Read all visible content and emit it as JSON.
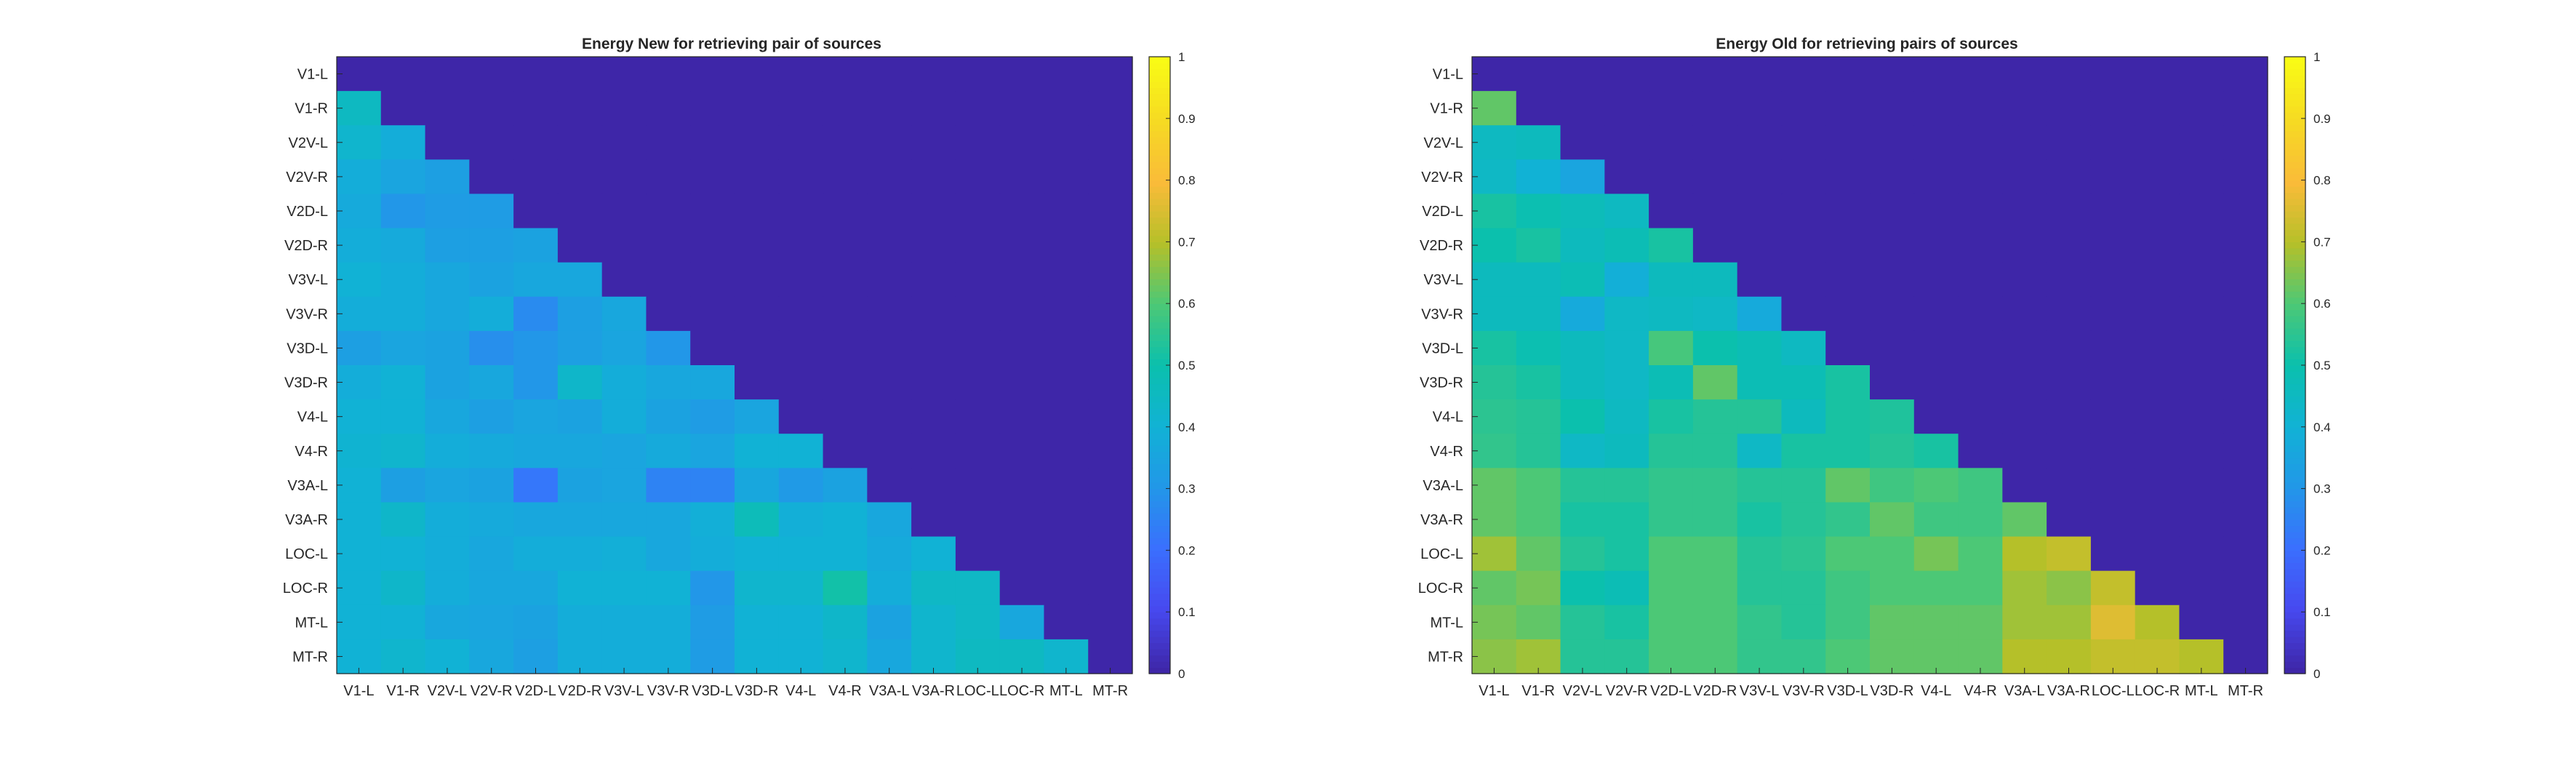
{
  "chart_data": [
    {
      "type": "heatmap",
      "title": "Energy New for retrieving pair of sources",
      "labels": [
        "V1-L",
        "V1-R",
        "V2V-L",
        "V2V-R",
        "V2D-L",
        "V2D-R",
        "V3V-L",
        "V3V-R",
        "V3D-L",
        "V3D-R",
        "V4-L",
        "V4-R",
        "V3A-L",
        "V3A-R",
        "LOC-L",
        "LOC-R",
        "MT-L",
        "MT-R"
      ],
      "colorbar": {
        "min": 0,
        "max": 1,
        "ticks": [
          "0",
          "0.1",
          "0.2",
          "0.3",
          "0.4",
          "0.5",
          "0.6",
          "0.7",
          "0.8",
          "0.9",
          "1"
        ]
      },
      "lower_triangle_only": true,
      "values": [
        [
          0,
          0,
          0,
          0,
          0,
          0,
          0,
          0,
          0,
          0,
          0,
          0,
          0,
          0,
          0,
          0,
          0,
          0
        ],
        [
          0.45,
          0,
          0,
          0,
          0,
          0,
          0,
          0,
          0,
          0,
          0,
          0,
          0,
          0,
          0,
          0,
          0,
          0
        ],
        [
          0.42,
          0.38,
          0,
          0,
          0,
          0,
          0,
          0,
          0,
          0,
          0,
          0,
          0,
          0,
          0,
          0,
          0,
          0
        ],
        [
          0.38,
          0.35,
          0.33,
          0,
          0,
          0,
          0,
          0,
          0,
          0,
          0,
          0,
          0,
          0,
          0,
          0,
          0,
          0
        ],
        [
          0.37,
          0.3,
          0.32,
          0.32,
          0,
          0,
          0,
          0,
          0,
          0,
          0,
          0,
          0,
          0,
          0,
          0,
          0,
          0
        ],
        [
          0.38,
          0.37,
          0.33,
          0.33,
          0.34,
          0,
          0,
          0,
          0,
          0,
          0,
          0,
          0,
          0,
          0,
          0,
          0,
          0
        ],
        [
          0.4,
          0.38,
          0.36,
          0.34,
          0.36,
          0.36,
          0,
          0,
          0,
          0,
          0,
          0,
          0,
          0,
          0,
          0,
          0,
          0
        ],
        [
          0.38,
          0.38,
          0.36,
          0.38,
          0.27,
          0.33,
          0.36,
          0,
          0,
          0,
          0,
          0,
          0,
          0,
          0,
          0,
          0,
          0
        ],
        [
          0.33,
          0.35,
          0.34,
          0.28,
          0.3,
          0.33,
          0.35,
          0.3,
          0,
          0,
          0,
          0,
          0,
          0,
          0,
          0,
          0,
          0
        ],
        [
          0.38,
          0.4,
          0.34,
          0.36,
          0.3,
          0.43,
          0.38,
          0.36,
          0.36,
          0,
          0,
          0,
          0,
          0,
          0,
          0,
          0,
          0
        ],
        [
          0.4,
          0.4,
          0.36,
          0.33,
          0.35,
          0.34,
          0.38,
          0.34,
          0.32,
          0.35,
          0,
          0,
          0,
          0,
          0,
          0,
          0,
          0
        ],
        [
          0.41,
          0.42,
          0.38,
          0.37,
          0.36,
          0.36,
          0.35,
          0.37,
          0.35,
          0.4,
          0.4,
          0,
          0,
          0,
          0,
          0,
          0,
          0
        ],
        [
          0.4,
          0.33,
          0.35,
          0.34,
          0.22,
          0.34,
          0.35,
          0.25,
          0.25,
          0.36,
          0.31,
          0.34,
          0,
          0,
          0,
          0,
          0,
          0
        ],
        [
          0.4,
          0.43,
          0.38,
          0.37,
          0.36,
          0.36,
          0.36,
          0.36,
          0.39,
          0.47,
          0.39,
          0.4,
          0.36,
          0,
          0,
          0,
          0,
          0
        ],
        [
          0.4,
          0.4,
          0.38,
          0.36,
          0.38,
          0.38,
          0.39,
          0.36,
          0.38,
          0.4,
          0.4,
          0.4,
          0.37,
          0.4,
          0,
          0,
          0,
          0
        ],
        [
          0.4,
          0.43,
          0.38,
          0.36,
          0.36,
          0.4,
          0.4,
          0.4,
          0.3,
          0.42,
          0.42,
          0.51,
          0.38,
          0.44,
          0.44,
          0,
          0,
          0
        ],
        [
          0.4,
          0.4,
          0.36,
          0.35,
          0.34,
          0.38,
          0.38,
          0.38,
          0.32,
          0.4,
          0.4,
          0.43,
          0.34,
          0.42,
          0.44,
          0.36,
          0,
          0
        ],
        [
          0.4,
          0.42,
          0.4,
          0.36,
          0.33,
          0.38,
          0.38,
          0.38,
          0.32,
          0.4,
          0.4,
          0.42,
          0.36,
          0.42,
          0.45,
          0.45,
          0.42,
          0
        ]
      ]
    },
    {
      "type": "heatmap",
      "title": "Energy Old for retrieving pairs of sources",
      "labels": [
        "V1-L",
        "V1-R",
        "V2V-L",
        "V2V-R",
        "V2D-L",
        "V2D-R",
        "V3V-L",
        "V3V-R",
        "V3D-L",
        "V3D-R",
        "V4-L",
        "V4-R",
        "V3A-L",
        "V3A-R",
        "LOC-L",
        "LOC-R",
        "MT-L",
        "MT-R"
      ],
      "colorbar": {
        "min": 0,
        "max": 1,
        "ticks": [
          "0",
          "0.1",
          "0.2",
          "0.3",
          "0.4",
          "0.5",
          "0.6",
          "0.7",
          "0.8",
          "0.9",
          "1"
        ]
      },
      "lower_triangle_only": true,
      "values": [
        [
          0,
          0,
          0,
          0,
          0,
          0,
          0,
          0,
          0,
          0,
          0,
          0,
          0,
          0,
          0,
          0,
          0,
          0
        ],
        [
          0.62,
          0,
          0,
          0,
          0,
          0,
          0,
          0,
          0,
          0,
          0,
          0,
          0,
          0,
          0,
          0,
          0,
          0
        ],
        [
          0.45,
          0.46,
          0,
          0,
          0,
          0,
          0,
          0,
          0,
          0,
          0,
          0,
          0,
          0,
          0,
          0,
          0,
          0
        ],
        [
          0.44,
          0.4,
          0.35,
          0,
          0,
          0,
          0,
          0,
          0,
          0,
          0,
          0,
          0,
          0,
          0,
          0,
          0,
          0
        ],
        [
          0.52,
          0.49,
          0.47,
          0.45,
          0,
          0,
          0,
          0,
          0,
          0,
          0,
          0,
          0,
          0,
          0,
          0,
          0,
          0
        ],
        [
          0.5,
          0.52,
          0.46,
          0.48,
          0.52,
          0,
          0,
          0,
          0,
          0,
          0,
          0,
          0,
          0,
          0,
          0,
          0,
          0
        ],
        [
          0.46,
          0.46,
          0.48,
          0.39,
          0.46,
          0.46,
          0,
          0,
          0,
          0,
          0,
          0,
          0,
          0,
          0,
          0,
          0,
          0
        ],
        [
          0.46,
          0.46,
          0.37,
          0.44,
          0.45,
          0.44,
          0.37,
          0,
          0,
          0,
          0,
          0,
          0,
          0,
          0,
          0,
          0,
          0
        ],
        [
          0.52,
          0.49,
          0.46,
          0.44,
          0.59,
          0.5,
          0.48,
          0.45,
          0,
          0,
          0,
          0,
          0,
          0,
          0,
          0,
          0,
          0
        ],
        [
          0.54,
          0.52,
          0.46,
          0.44,
          0.48,
          0.62,
          0.48,
          0.48,
          0.52,
          0,
          0,
          0,
          0,
          0,
          0,
          0,
          0,
          0
        ],
        [
          0.55,
          0.54,
          0.5,
          0.45,
          0.52,
          0.54,
          0.54,
          0.46,
          0.52,
          0.53,
          0,
          0,
          0,
          0,
          0,
          0,
          0,
          0
        ],
        [
          0.56,
          0.54,
          0.44,
          0.46,
          0.54,
          0.54,
          0.44,
          0.52,
          0.52,
          0.54,
          0.52,
          0,
          0,
          0,
          0,
          0,
          0,
          0
        ],
        [
          0.62,
          0.6,
          0.54,
          0.54,
          0.56,
          0.56,
          0.54,
          0.54,
          0.62,
          0.58,
          0.6,
          0.58,
          0,
          0,
          0,
          0,
          0,
          0
        ],
        [
          0.62,
          0.6,
          0.52,
          0.52,
          0.56,
          0.56,
          0.52,
          0.54,
          0.56,
          0.62,
          0.58,
          0.58,
          0.62,
          0,
          0,
          0,
          0,
          0
        ],
        [
          0.68,
          0.62,
          0.54,
          0.52,
          0.6,
          0.6,
          0.54,
          0.55,
          0.6,
          0.6,
          0.64,
          0.6,
          0.7,
          0.72,
          0,
          0,
          0,
          0
        ],
        [
          0.62,
          0.64,
          0.5,
          0.48,
          0.6,
          0.6,
          0.54,
          0.54,
          0.58,
          0.6,
          0.6,
          0.6,
          0.68,
          0.66,
          0.72,
          0,
          0,
          0
        ],
        [
          0.64,
          0.62,
          0.54,
          0.52,
          0.6,
          0.6,
          0.56,
          0.54,
          0.58,
          0.62,
          0.62,
          0.62,
          0.68,
          0.68,
          0.76,
          0.7,
          0,
          0
        ],
        [
          0.66,
          0.68,
          0.54,
          0.54,
          0.6,
          0.6,
          0.56,
          0.56,
          0.6,
          0.62,
          0.62,
          0.62,
          0.7,
          0.7,
          0.72,
          0.72,
          0.7,
          0
        ]
      ]
    }
  ]
}
